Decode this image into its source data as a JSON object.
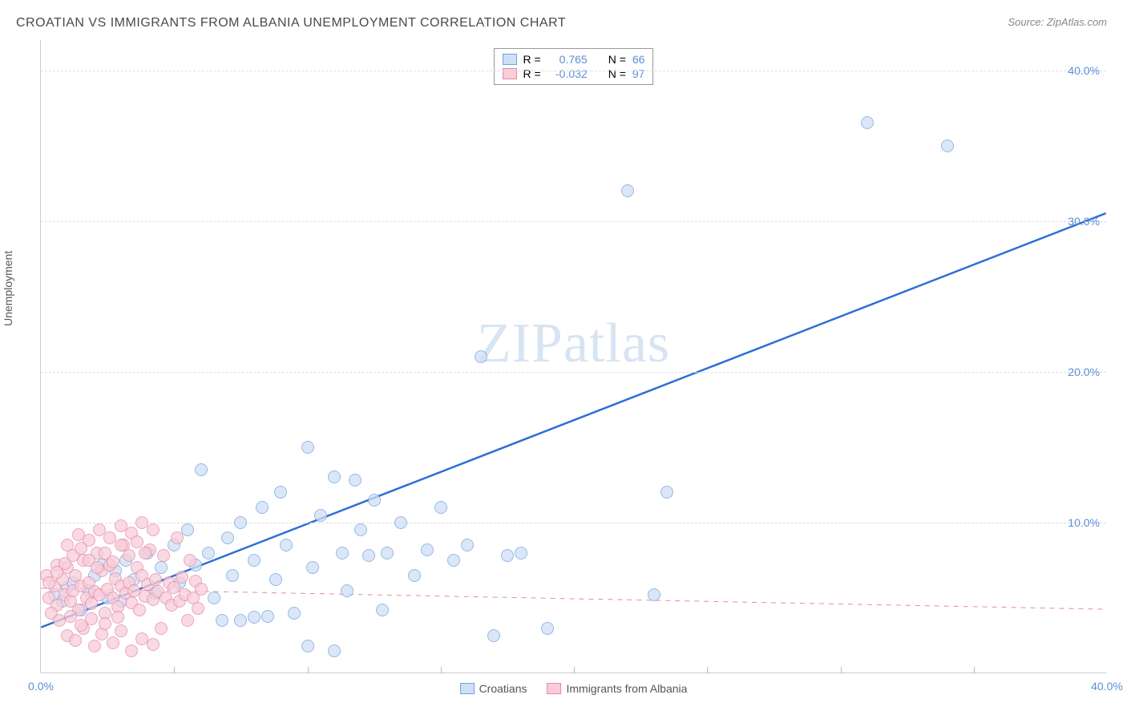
{
  "title": "CROATIAN VS IMMIGRANTS FROM ALBANIA UNEMPLOYMENT CORRELATION CHART",
  "source_label": "Source: ZipAtlas.com",
  "ylabel": "Unemployment",
  "watermark_a": "ZIP",
  "watermark_b": "atlas",
  "chart": {
    "type": "scatter",
    "xlim": [
      0,
      40
    ],
    "ylim": [
      0,
      42
    ],
    "xtick_min_label": "0.0%",
    "xtick_max_label": "40.0%",
    "yticks": [
      {
        "v": 10,
        "label": "10.0%"
      },
      {
        "v": 20,
        "label": "20.0%"
      },
      {
        "v": 30,
        "label": "30.0%"
      },
      {
        "v": 40,
        "label": "40.0%"
      }
    ],
    "grid_color": "#dddddd",
    "background_color": "#ffffff",
    "axis_color": "#cccccc",
    "tick_label_color": "#5b8fd6",
    "xmin_label_color": "#5b8fd6",
    "series": [
      {
        "name": "Croatians",
        "label": "Croatians",
        "R_label": "R =",
        "R_value": "0.765",
        "N_label": "N =",
        "N_value": "66",
        "marker_fill": "#cfe0f5",
        "marker_stroke": "#6fa3e0",
        "marker_radius": 8,
        "marker_opacity": 0.75,
        "trend": {
          "x1": 0,
          "y1": 3.0,
          "x2": 40,
          "y2": 30.5,
          "color": "#2d6fd6",
          "width": 2.5,
          "dash": "none"
        },
        "points": [
          [
            0.5,
            5.2
          ],
          [
            0.8,
            4.8
          ],
          [
            1.0,
            5.7
          ],
          [
            1.2,
            6.0
          ],
          [
            1.5,
            4.2
          ],
          [
            1.8,
            5.5
          ],
          [
            2.0,
            6.5
          ],
          [
            2.3,
            7.2
          ],
          [
            2.5,
            5.0
          ],
          [
            2.8,
            6.8
          ],
          [
            3.0,
            4.8
          ],
          [
            3.2,
            7.5
          ],
          [
            3.5,
            6.2
          ],
          [
            4.0,
            8.0
          ],
          [
            4.3,
            5.3
          ],
          [
            4.5,
            7.0
          ],
          [
            5.0,
            8.5
          ],
          [
            5.2,
            6.0
          ],
          [
            5.5,
            9.5
          ],
          [
            5.8,
            7.2
          ],
          [
            6.0,
            13.5
          ],
          [
            6.3,
            8.0
          ],
          [
            6.5,
            5.0
          ],
          [
            7.0,
            9.0
          ],
          [
            7.2,
            6.5
          ],
          [
            7.5,
            10.0
          ],
          [
            8.0,
            7.5
          ],
          [
            8.3,
            11.0
          ],
          [
            8.5,
            3.8
          ],
          [
            8.8,
            6.2
          ],
          [
            9.0,
            12.0
          ],
          [
            9.2,
            8.5
          ],
          [
            9.5,
            4.0
          ],
          [
            10.0,
            15.0
          ],
          [
            10.2,
            7.0
          ],
          [
            10.5,
            10.5
          ],
          [
            11.0,
            13.0
          ],
          [
            11.3,
            8.0
          ],
          [
            11.5,
            5.5
          ],
          [
            11.8,
            12.8
          ],
          [
            12.0,
            9.5
          ],
          [
            12.3,
            7.8
          ],
          [
            12.5,
            11.5
          ],
          [
            12.8,
            4.2
          ],
          [
            13.0,
            8.0
          ],
          [
            13.5,
            10.0
          ],
          [
            14.0,
            6.5
          ],
          [
            14.5,
            8.2
          ],
          [
            15.0,
            11.0
          ],
          [
            15.5,
            7.5
          ],
          [
            16.0,
            8.5
          ],
          [
            16.5,
            21.0
          ],
          [
            17.0,
            2.5
          ],
          [
            17.5,
            7.8
          ],
          [
            18.0,
            8.0
          ],
          [
            19.0,
            3.0
          ],
          [
            22.0,
            32.0
          ],
          [
            23.0,
            5.2
          ],
          [
            23.5,
            12.0
          ],
          [
            31.0,
            36.5
          ],
          [
            34.0,
            35.0
          ],
          [
            10.0,
            1.8
          ],
          [
            11.0,
            1.5
          ],
          [
            7.5,
            3.5
          ],
          [
            8.0,
            3.7
          ],
          [
            6.8,
            3.5
          ]
        ]
      },
      {
        "name": "Immigrants from Albania",
        "label": "Immigrants from Albania",
        "R_label": "R =",
        "R_value": "-0.032",
        "N_label": "N =",
        "N_value": "97",
        "marker_fill": "#f8cdd9",
        "marker_stroke": "#e589a8",
        "marker_radius": 8,
        "marker_opacity": 0.75,
        "trend": {
          "x1": 0,
          "y1": 5.6,
          "x2": 40,
          "y2": 4.2,
          "color": "#e589a8",
          "width": 1,
          "dash": "6,6"
        },
        "points": [
          [
            0.3,
            5.0
          ],
          [
            0.5,
            5.8
          ],
          [
            0.6,
            4.5
          ],
          [
            0.8,
            6.2
          ],
          [
            0.9,
            5.2
          ],
          [
            1.0,
            7.0
          ],
          [
            1.1,
            4.8
          ],
          [
            1.2,
            5.5
          ],
          [
            1.3,
            6.5
          ],
          [
            1.4,
            4.2
          ],
          [
            1.5,
            5.8
          ],
          [
            1.6,
            7.5
          ],
          [
            1.7,
            5.0
          ],
          [
            1.8,
            6.0
          ],
          [
            1.9,
            4.6
          ],
          [
            2.0,
            5.4
          ],
          [
            2.1,
            8.0
          ],
          [
            2.2,
            5.2
          ],
          [
            2.3,
            6.8
          ],
          [
            2.4,
            4.0
          ],
          [
            2.5,
            5.6
          ],
          [
            2.6,
            7.2
          ],
          [
            2.7,
            5.0
          ],
          [
            2.8,
            6.3
          ],
          [
            2.9,
            4.4
          ],
          [
            3.0,
            5.8
          ],
          [
            3.1,
            8.5
          ],
          [
            3.2,
            5.3
          ],
          [
            3.3,
            6.0
          ],
          [
            3.4,
            4.7
          ],
          [
            3.5,
            5.5
          ],
          [
            3.6,
            7.0
          ],
          [
            3.7,
            4.2
          ],
          [
            3.8,
            6.5
          ],
          [
            3.9,
            5.1
          ],
          [
            4.0,
            5.9
          ],
          [
            4.1,
            8.2
          ],
          [
            4.2,
            4.9
          ],
          [
            4.3,
            6.2
          ],
          [
            4.4,
            5.4
          ],
          [
            4.5,
            3.0
          ],
          [
            4.6,
            7.8
          ],
          [
            4.7,
            5.0
          ],
          [
            4.8,
            6.0
          ],
          [
            4.9,
            4.5
          ],
          [
            5.0,
            5.7
          ],
          [
            5.1,
            9.0
          ],
          [
            5.2,
            4.8
          ],
          [
            5.3,
            6.4
          ],
          [
            5.4,
            5.2
          ],
          [
            5.5,
            3.5
          ],
          [
            5.6,
            7.5
          ],
          [
            5.7,
            5.0
          ],
          [
            5.8,
            6.1
          ],
          [
            5.9,
            4.3
          ],
          [
            6.0,
            5.6
          ],
          [
            1.0,
            2.5
          ],
          [
            1.3,
            2.2
          ],
          [
            1.6,
            3.0
          ],
          [
            2.0,
            1.8
          ],
          [
            2.3,
            2.6
          ],
          [
            2.7,
            2.0
          ],
          [
            3.0,
            2.8
          ],
          [
            3.4,
            1.5
          ],
          [
            3.8,
            2.3
          ],
          [
            4.2,
            1.9
          ],
          [
            0.4,
            4.0
          ],
          [
            0.7,
            3.5
          ],
          [
            1.1,
            3.8
          ],
          [
            1.5,
            3.2
          ],
          [
            1.9,
            3.6
          ],
          [
            2.4,
            3.3
          ],
          [
            2.9,
            3.7
          ],
          [
            0.2,
            6.5
          ],
          [
            0.6,
            7.2
          ],
          [
            1.0,
            8.5
          ],
          [
            1.4,
            9.2
          ],
          [
            1.8,
            8.8
          ],
          [
            2.2,
            9.5
          ],
          [
            2.6,
            9.0
          ],
          [
            3.0,
            9.8
          ],
          [
            3.4,
            9.3
          ],
          [
            3.8,
            10.0
          ],
          [
            4.2,
            9.5
          ],
          [
            0.3,
            6.0
          ],
          [
            0.6,
            6.7
          ],
          [
            0.9,
            7.3
          ],
          [
            1.2,
            7.8
          ],
          [
            1.5,
            8.3
          ],
          [
            1.8,
            7.5
          ],
          [
            2.1,
            7.0
          ],
          [
            2.4,
            8.0
          ],
          [
            2.7,
            7.4
          ],
          [
            3.0,
            8.5
          ],
          [
            3.3,
            7.8
          ],
          [
            3.6,
            8.7
          ],
          [
            3.9,
            8.0
          ]
        ]
      }
    ]
  },
  "legend": {
    "series1_label": "Croatians",
    "series2_label": "Immigrants from Albania"
  }
}
